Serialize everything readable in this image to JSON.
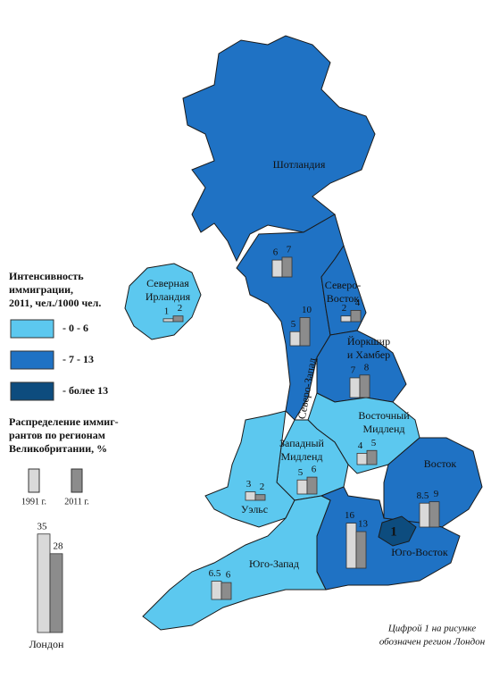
{
  "legend": {
    "title": [
      "Интенсивность",
      "иммиграции,",
      "2011, чел./1000 чел."
    ],
    "items": [
      {
        "label": "- 0 - 6",
        "color": "#5cc8ef"
      },
      {
        "label": "- 7 - 13",
        "color": "#1f72c4"
      },
      {
        "label": "- более 13",
        "color": "#0d4c7e"
      }
    ]
  },
  "bars_legend": {
    "title": [
      "Распределение иммиг-",
      "рантов по регионам",
      "Великобритании, %"
    ],
    "years": [
      "1991 г.",
      "2011 г."
    ],
    "colors": [
      "#d9d9d9",
      "#8c8c8c"
    ]
  },
  "regions": [
    {
      "name": [
        "Шотландия"
      ],
      "category": 1,
      "values": [
        6,
        7
      ]
    },
    {
      "name": [
        "Северная",
        "Ирландия"
      ],
      "category": 0,
      "values": [
        1,
        2
      ]
    },
    {
      "name": [
        "Северо-",
        "Восток"
      ],
      "category": 1,
      "values": [
        2,
        4
      ]
    },
    {
      "name": [
        "Северо-Запад"
      ],
      "category": 1,
      "values": [
        5,
        10
      ]
    },
    {
      "name": [
        "Йоркшир",
        "и Хамбер"
      ],
      "category": 1,
      "values": [
        7,
        8
      ]
    },
    {
      "name": [
        "Восточный",
        "Мидленд"
      ],
      "category": 0,
      "values": [
        4,
        5
      ]
    },
    {
      "name": [
        "Западный",
        "Мидленд"
      ],
      "category": 0,
      "values": [
        5,
        6
      ]
    },
    {
      "name": [
        "Уэльс"
      ],
      "category": 0,
      "values": [
        3,
        2
      ]
    },
    {
      "name": [
        "Восток"
      ],
      "category": 1,
      "values": [
        8.5,
        9
      ]
    },
    {
      "name": [
        "Юго-Восток"
      ],
      "category": 1,
      "values": [
        16,
        13
      ]
    },
    {
      "name": [
        "Юго-Запад"
      ],
      "category": 0,
      "values": [
        6.5,
        6
      ]
    }
  ],
  "london": {
    "name": "Лондон",
    "marker": "1",
    "category": 2,
    "values": [
      35,
      28
    ]
  },
  "note": [
    "Цифрой 1 на рисунке",
    "обозначен регион Лондон"
  ]
}
